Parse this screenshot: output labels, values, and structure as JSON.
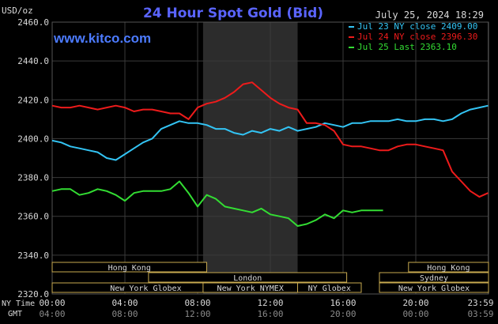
{
  "header": {
    "unit_label": "USD/oz",
    "title": "24 Hour Spot Gold (Bid)",
    "timestamp": "July 25, 2024 18:29",
    "website": "www.kitco.com"
  },
  "colors": {
    "background": "#000000",
    "grid": "#3a3a3a",
    "shade": "#2c2c2c",
    "axis_text": "#d8d8d8",
    "title": "#5a64ff",
    "brand": "#4c7bff",
    "session_box": "#c8aa50"
  },
  "axis_labels": {
    "time_zone_top": "NY Time",
    "time_zone_bottom": "GMT"
  },
  "sessions": [
    {
      "label": "Hong Kong",
      "start": 0,
      "end": 8.5
    },
    {
      "label": "London",
      "start": 5.3,
      "end": 16.2
    },
    {
      "label": "New York Globex",
      "start": 0,
      "end": 10.3
    },
    {
      "label": "New York NYMEX",
      "start": 8.3,
      "end": 13.5
    },
    {
      "label": "NY Globex",
      "start": 13.5,
      "end": 17
    },
    {
      "label": "Hong Kong",
      "start": 19.6,
      "end": 24
    },
    {
      "label": "Sydney",
      "start": 18,
      "end": 24
    },
    {
      "label": "New York Globex",
      "start": 18,
      "end": 24
    }
  ],
  "chart_data": {
    "type": "line",
    "title": "24 Hour Spot Gold (Bid)",
    "ylabel": "USD/oz",
    "xlabel": "NY Time",
    "ylim": [
      2320,
      2460
    ],
    "xlim": [
      0,
      24
    ],
    "y_ticks": [
      "2460.0",
      "2440.0",
      "2420.0",
      "2400.0",
      "2380.0",
      "2360.0",
      "2340.0",
      "2320.0"
    ],
    "y_tick_values": [
      2460,
      2440,
      2420,
      2400,
      2380,
      2360,
      2340,
      2320
    ],
    "x_ticks_ny": [
      "00:00",
      "04:00",
      "08:00",
      "12:00",
      "16:00",
      "20:00",
      "23:59"
    ],
    "x_ticks_gmt": [
      "04:00",
      "08:00",
      "12:00",
      "16:00",
      "20:00",
      "00:00",
      "03:59"
    ],
    "x_tick_values": [
      0,
      4,
      8,
      12,
      16,
      20,
      23.98
    ],
    "shaded_range": [
      8.3,
      13.5
    ],
    "grid": true,
    "legend_position": "top-right",
    "series": [
      {
        "name": "Jul 23 NY close 2409.00",
        "color": "#33c4f4",
        "x": [
          0,
          0.5,
          1,
          1.5,
          2,
          2.5,
          3,
          3.5,
          4,
          4.5,
          5,
          5.5,
          6,
          6.5,
          7,
          7.5,
          8,
          8.5,
          9,
          9.5,
          10,
          10.5,
          11,
          11.5,
          12,
          12.5,
          13,
          13.5,
          14,
          14.5,
          15,
          15.5,
          16,
          16.5,
          17,
          17.5,
          18,
          18.5,
          19,
          19.5,
          20,
          20.5,
          21,
          21.5,
          22,
          22.5,
          23,
          23.5,
          23.98
        ],
        "y": [
          2399,
          2398,
          2396,
          2395,
          2394,
          2393,
          2390,
          2389,
          2392,
          2395,
          2398,
          2400,
          2405,
          2407,
          2409,
          2408,
          2408,
          2407,
          2405,
          2405,
          2403,
          2402,
          2404,
          2403,
          2405,
          2404,
          2406,
          2404,
          2405,
          2406,
          2408,
          2407,
          2406,
          2408,
          2408,
          2409,
          2409,
          2409,
          2410,
          2409,
          2409,
          2410,
          2410,
          2409,
          2410,
          2413,
          2415,
          2416,
          2417
        ]
      },
      {
        "name": "Jul 24 NY close 2396.30",
        "color": "#ee1b1b",
        "x": [
          0,
          0.5,
          1,
          1.5,
          2,
          2.5,
          3,
          3.5,
          4,
          4.5,
          5,
          5.5,
          6,
          6.5,
          7,
          7.5,
          8,
          8.5,
          9,
          9.5,
          10,
          10.5,
          11,
          11.5,
          12,
          12.5,
          13,
          13.5,
          14,
          14.5,
          15,
          15.5,
          16,
          16.5,
          17,
          17.5,
          18,
          18.5,
          19,
          19.5,
          20,
          20.5,
          21,
          21.5,
          22,
          22.5,
          23,
          23.5,
          23.98
        ],
        "y": [
          2417,
          2416,
          2416,
          2417,
          2416,
          2415,
          2416,
          2417,
          2416,
          2414,
          2415,
          2415,
          2414,
          2413,
          2413,
          2410,
          2416,
          2418,
          2419,
          2421,
          2424,
          2428,
          2429,
          2425,
          2421,
          2418,
          2416,
          2415,
          2408,
          2408,
          2407,
          2404,
          2397,
          2396,
          2396,
          2395,
          2394,
          2394,
          2396,
          2397,
          2397,
          2396,
          2395,
          2394,
          2383,
          2378,
          2373,
          2370,
          2372
        ]
      },
      {
        "name": "Jul 25 Last 2363.10",
        "color": "#33dd33",
        "x": [
          0,
          0.5,
          1,
          1.5,
          2,
          2.5,
          3,
          3.5,
          4,
          4.5,
          5,
          5.5,
          6,
          6.5,
          7,
          7.5,
          8,
          8.5,
          9,
          9.5,
          10,
          10.5,
          11,
          11.5,
          12,
          12.5,
          13,
          13.5,
          14,
          14.5,
          15,
          15.5,
          16,
          16.5,
          17,
          17.5,
          18,
          18.2
        ],
        "y": [
          2373,
          2374,
          2374,
          2371,
          2372,
          2374,
          2373,
          2371,
          2368,
          2372,
          2373,
          2373,
          2373,
          2374,
          2378,
          2372,
          2365,
          2371,
          2369,
          2365,
          2364,
          2363,
          2362,
          2364,
          2361,
          2360,
          2359,
          2355,
          2356,
          2358,
          2361,
          2359,
          2363,
          2362,
          2363,
          2363,
          2363,
          2363
        ]
      }
    ]
  }
}
